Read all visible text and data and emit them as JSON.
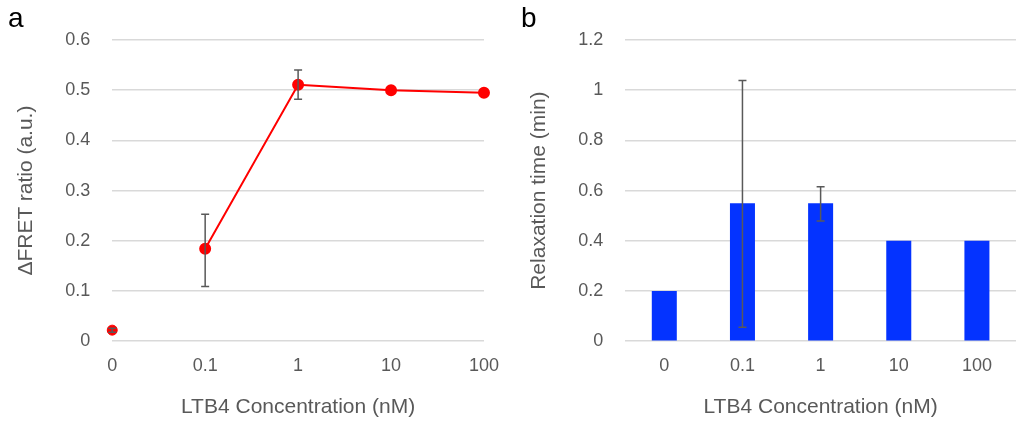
{
  "chart_data": [
    {
      "type": "line",
      "title": "a",
      "xlabel": "LTB4 Concentration (nM)",
      "ylabel": "ΔFRET ratio (a.u.)",
      "categories": [
        "0",
        "0.1",
        "1",
        "10",
        "100"
      ],
      "series": [
        {
          "type": "scatter",
          "color": "#ff0000",
          "values": [
            0.022,
            null,
            null,
            null,
            null
          ],
          "errors": [
            0.004,
            null,
            null,
            null,
            null
          ]
        },
        {
          "type": "line",
          "color": "#ff0000",
          "values": [
            null,
            0.184,
            0.511,
            0.5,
            0.495
          ],
          "errors": [
            null,
            [
              0.109,
              0.253
            ],
            [
              0.482,
              0.54
            ],
            null,
            null
          ]
        }
      ],
      "ylim": [
        0,
        0.6
      ],
      "yticks": [
        0,
        0.1,
        0.2,
        0.3,
        0.4,
        0.5,
        0.6
      ],
      "grid": "y",
      "legend": false,
      "marker": "circle",
      "line_style": "solid"
    },
    {
      "type": "bar",
      "title": "b",
      "xlabel": "LTB4 Concentration (nM)",
      "ylabel": "Relaxation time (min)",
      "categories": [
        "0",
        "0.1",
        "1",
        "10",
        "100"
      ],
      "series": [
        {
          "color": "#0433ff",
          "values": [
            0.2,
            0.55,
            0.55,
            0.4,
            0.4
          ],
          "errors": [
            null,
            [
              0.056,
              1.039
            ],
            [
              0.479,
              0.615
            ],
            null,
            null
          ]
        }
      ],
      "ylim": [
        0,
        1.2
      ],
      "yticks": [
        0,
        0.2,
        0.4,
        0.6,
        0.8,
        1,
        1.2
      ],
      "grid": "y",
      "legend": false
    }
  ]
}
